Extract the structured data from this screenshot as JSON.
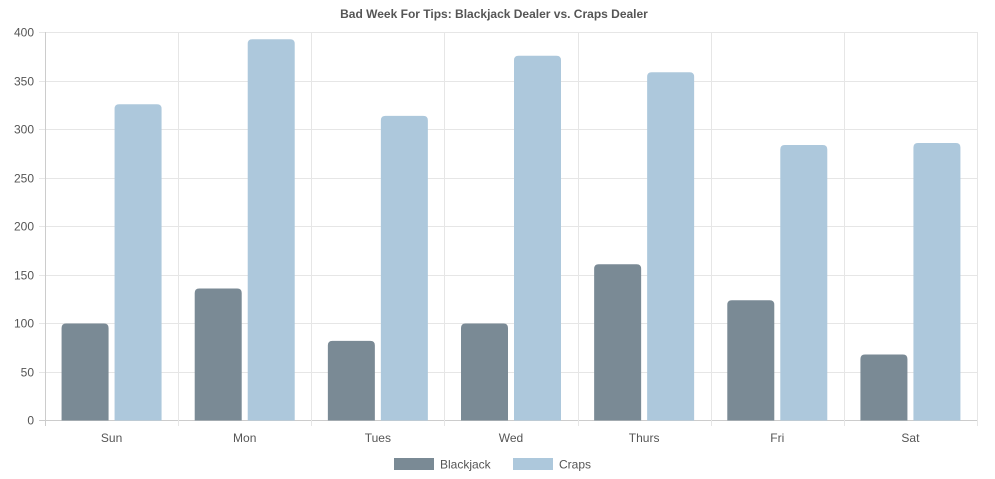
{
  "chart_data": {
    "type": "bar",
    "title": "Bad Week For Tips: Blackjack Dealer vs. Craps Dealer",
    "categories": [
      "Sun",
      "Mon",
      "Tues",
      "Wed",
      "Thurs",
      "Fri",
      "Sat"
    ],
    "series": [
      {
        "name": "Blackjack",
        "values": [
          99,
          135,
          81,
          99,
          160,
          123,
          67
        ],
        "color": "#7a8a95"
      },
      {
        "name": "Craps",
        "values": [
          325,
          392,
          313,
          375,
          358,
          283,
          285
        ],
        "color": "#adc8dc"
      }
    ],
    "xlabel": "",
    "ylabel": "",
    "ylim": [
      0,
      400
    ],
    "yticks": [
      0,
      50,
      100,
      150,
      200,
      250,
      300,
      350,
      400
    ],
    "grid": true,
    "legend_position": "bottom"
  }
}
